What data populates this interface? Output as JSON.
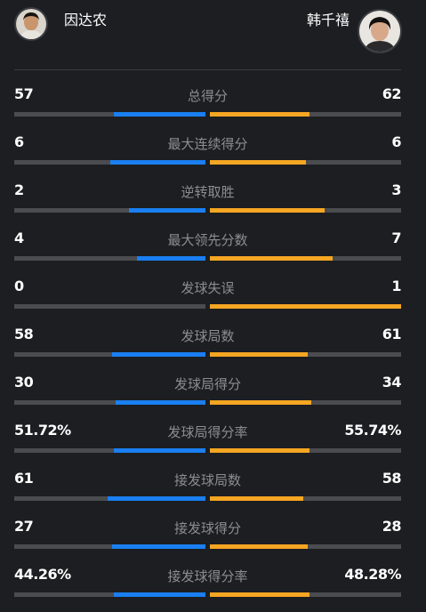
{
  "players": {
    "left": {
      "name": "因达农",
      "avatar": "player-photo-icon"
    },
    "right": {
      "name": "韩千禧",
      "avatar": "player-photo-icon"
    }
  },
  "colors": {
    "background": "#1c1e21",
    "left_bar": "#1a7ff0",
    "right_bar": "#f5a623",
    "bar_track": "#4a4c50",
    "label": "#8a8d92"
  },
  "stats": [
    {
      "label": "总得分",
      "left": "57",
      "right": "62",
      "left_fill": 0.48,
      "right_fill": 0.52
    },
    {
      "label": "最大连续得分",
      "left": "6",
      "right": "6",
      "left_fill": 0.5,
      "right_fill": 0.5
    },
    {
      "label": "逆转取胜",
      "left": "2",
      "right": "3",
      "left_fill": 0.4,
      "right_fill": 0.6
    },
    {
      "label": "最大领先分数",
      "left": "4",
      "right": "7",
      "left_fill": 0.36,
      "right_fill": 0.64
    },
    {
      "label": "发球失误",
      "left": "0",
      "right": "1",
      "left_fill": 0.0,
      "right_fill": 1.0
    },
    {
      "label": "发球局数",
      "left": "58",
      "right": "61",
      "left_fill": 0.49,
      "right_fill": 0.51
    },
    {
      "label": "发球局得分",
      "left": "30",
      "right": "34",
      "left_fill": 0.47,
      "right_fill": 0.53
    },
    {
      "label": "发球局得分率",
      "left": "51.72%",
      "right": "55.74%",
      "left_fill": 0.48,
      "right_fill": 0.52
    },
    {
      "label": "接发球局数",
      "left": "61",
      "right": "58",
      "left_fill": 0.51,
      "right_fill": 0.49
    },
    {
      "label": "接发球得分",
      "left": "27",
      "right": "28",
      "left_fill": 0.49,
      "right_fill": 0.51
    },
    {
      "label": "接发球得分率",
      "left": "44.26%",
      "right": "48.28%",
      "left_fill": 0.48,
      "right_fill": 0.52
    }
  ]
}
